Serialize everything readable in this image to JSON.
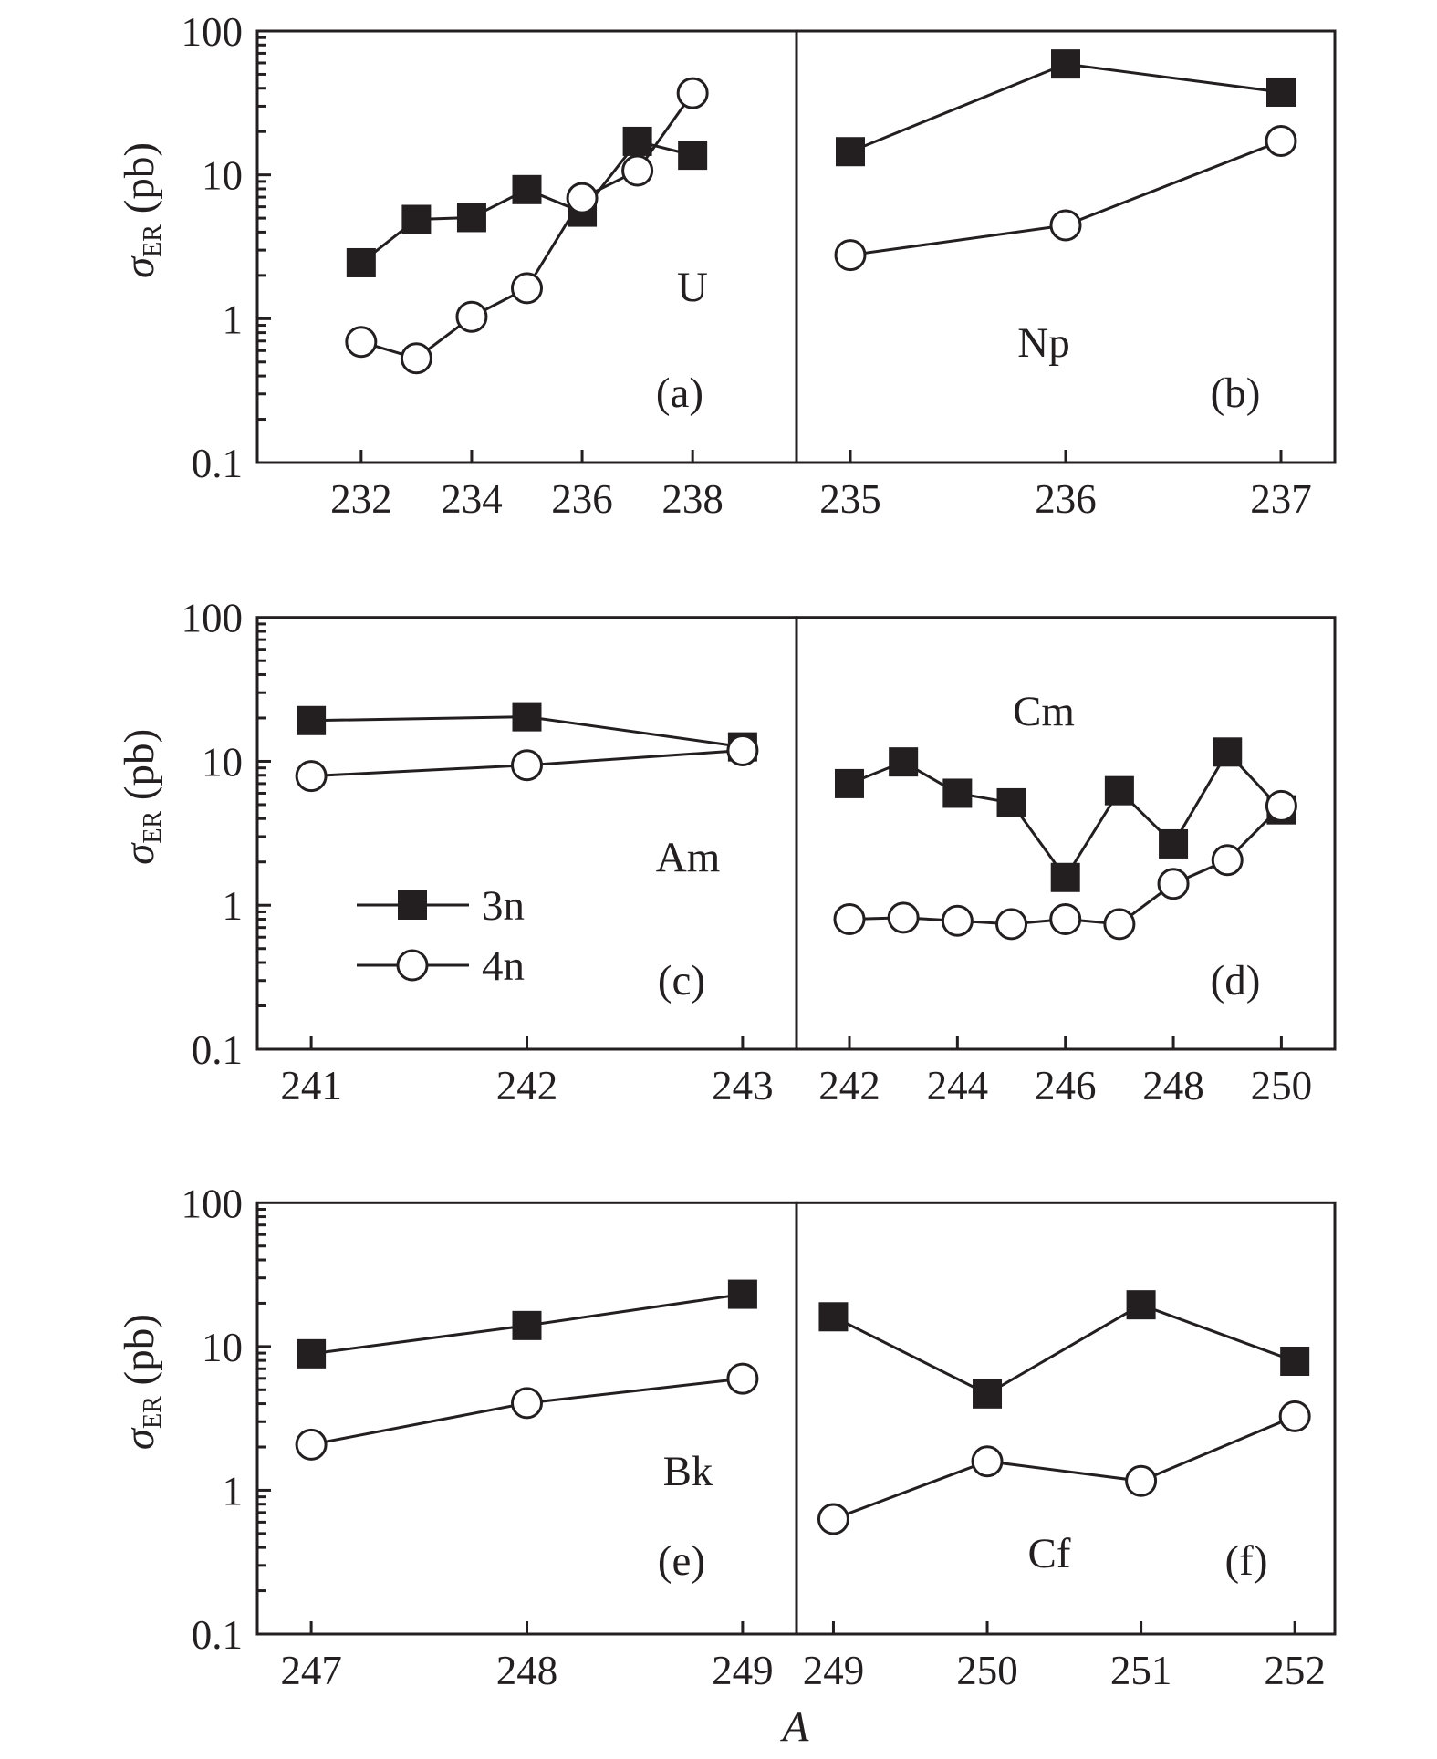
{
  "chart_data": [
    {
      "type": "line",
      "id": "a",
      "element": "U",
      "panel_label": "(a)",
      "xlabel": "",
      "ylabel": "σER (pb)",
      "yscale": "log",
      "ylim": [
        0.1,
        100
      ],
      "xlim": [
        230.12,
        239.88
      ],
      "xticks": [
        232,
        234,
        236,
        238
      ],
      "x": [
        232,
        233,
        234,
        235,
        236,
        237,
        238
      ],
      "series": [
        {
          "name": "3n",
          "marker": "filled-square",
          "values": [
            2.45,
            4.9,
            5.05,
            7.9,
            5.5,
            17.1,
            13.7
          ]
        },
        {
          "name": "4n",
          "marker": "open-circle",
          "values": [
            0.69,
            0.53,
            1.03,
            1.63,
            6.9,
            10.7,
            37
          ]
        }
      ]
    },
    {
      "type": "line",
      "id": "b",
      "element": "Np",
      "panel_label": "(b)",
      "yscale": "log",
      "ylim": [
        0.1,
        100
      ],
      "xlim": [
        234.75,
        237.25
      ],
      "xticks": [
        235,
        236,
        237
      ],
      "x": [
        235,
        236,
        237
      ],
      "series": [
        {
          "name": "3n",
          "marker": "filled-square",
          "values": [
            14.5,
            59,
            37.6
          ]
        },
        {
          "name": "4n",
          "marker": "open-circle",
          "values": [
            2.77,
            4.46,
            17.2
          ]
        }
      ]
    },
    {
      "type": "line",
      "id": "c",
      "element": "Am",
      "panel_label": "(c)",
      "ylabel": "σER (pb)",
      "yscale": "log",
      "ylim": [
        0.1,
        100
      ],
      "xlim": [
        240.75,
        243.25
      ],
      "xticks": [
        241,
        242,
        243
      ],
      "x": [
        241,
        242,
        243
      ],
      "series": [
        {
          "name": "3n",
          "marker": "filled-square",
          "values": [
            19.2,
            20.4,
            12.6
          ]
        },
        {
          "name": "4n",
          "marker": "open-circle",
          "values": [
            7.9,
            9.4,
            11.9
          ]
        }
      ]
    },
    {
      "type": "line",
      "id": "d",
      "element": "Cm",
      "panel_label": "(d)",
      "yscale": "log",
      "ylim": [
        0.1,
        100
      ],
      "xlim": [
        241.02,
        250.99
      ],
      "xticks": [
        242,
        244,
        246,
        248,
        250
      ],
      "x": [
        242,
        243,
        244,
        245,
        246,
        247,
        248,
        249,
        250
      ],
      "series": [
        {
          "name": "3n",
          "marker": "filled-square",
          "values": [
            7.0,
            9.9,
            6.0,
            5.15,
            1.56,
            6.25,
            2.67,
            11.6,
            4.6
          ]
        },
        {
          "name": "4n",
          "marker": "open-circle",
          "values": [
            0.8,
            0.82,
            0.78,
            0.74,
            0.8,
            0.74,
            1.41,
            2.06,
            4.9
          ]
        }
      ]
    },
    {
      "type": "line",
      "id": "e",
      "element": "Bk",
      "panel_label": "(e)",
      "ylabel": "σER (pb)",
      "yscale": "log",
      "ylim": [
        0.1,
        100
      ],
      "xlim": [
        246.75,
        249.25
      ],
      "xticks": [
        247,
        248,
        249
      ],
      "x": [
        247,
        248,
        249
      ],
      "series": [
        {
          "name": "3n",
          "marker": "filled-square",
          "values": [
            8.9,
            14.0,
            23.1
          ]
        },
        {
          "name": "4n",
          "marker": "open-circle",
          "values": [
            2.08,
            4.04,
            5.97
          ]
        }
      ]
    },
    {
      "type": "line",
      "id": "f",
      "element": "Cf",
      "panel_label": "(f)",
      "yscale": "log",
      "ylim": [
        0.1,
        100
      ],
      "xlim": [
        248.76,
        252.26
      ],
      "xticks": [
        249,
        250,
        251,
        252
      ],
      "x": [
        249,
        250,
        251,
        252
      ],
      "series": [
        {
          "name": "3n",
          "marker": "filled-square",
          "values": [
            16.1,
            4.68,
            19.5,
            7.9
          ]
        },
        {
          "name": "4n",
          "marker": "open-circle",
          "values": [
            0.63,
            1.59,
            1.16,
            3.27
          ]
        }
      ]
    }
  ],
  "shared": {
    "xlabel": "A",
    "ylabel_main": "σ",
    "ylabel_sub": "ER",
    "ylabel_unit": "(pb)",
    "yticks": [
      {
        "value": 0.1,
        "label": "0.1"
      },
      {
        "value": 1,
        "label": "1"
      },
      {
        "value": 10,
        "label": "10"
      },
      {
        "value": 100,
        "label": "100"
      }
    ],
    "legend": {
      "location": "panel-c lower-left",
      "entries": [
        {
          "label": "3n",
          "marker": "filled-square"
        },
        {
          "label": "4n",
          "marker": "open-circle"
        }
      ]
    },
    "colors": {
      "ink": "#231f20",
      "background": "#ffffff"
    }
  }
}
